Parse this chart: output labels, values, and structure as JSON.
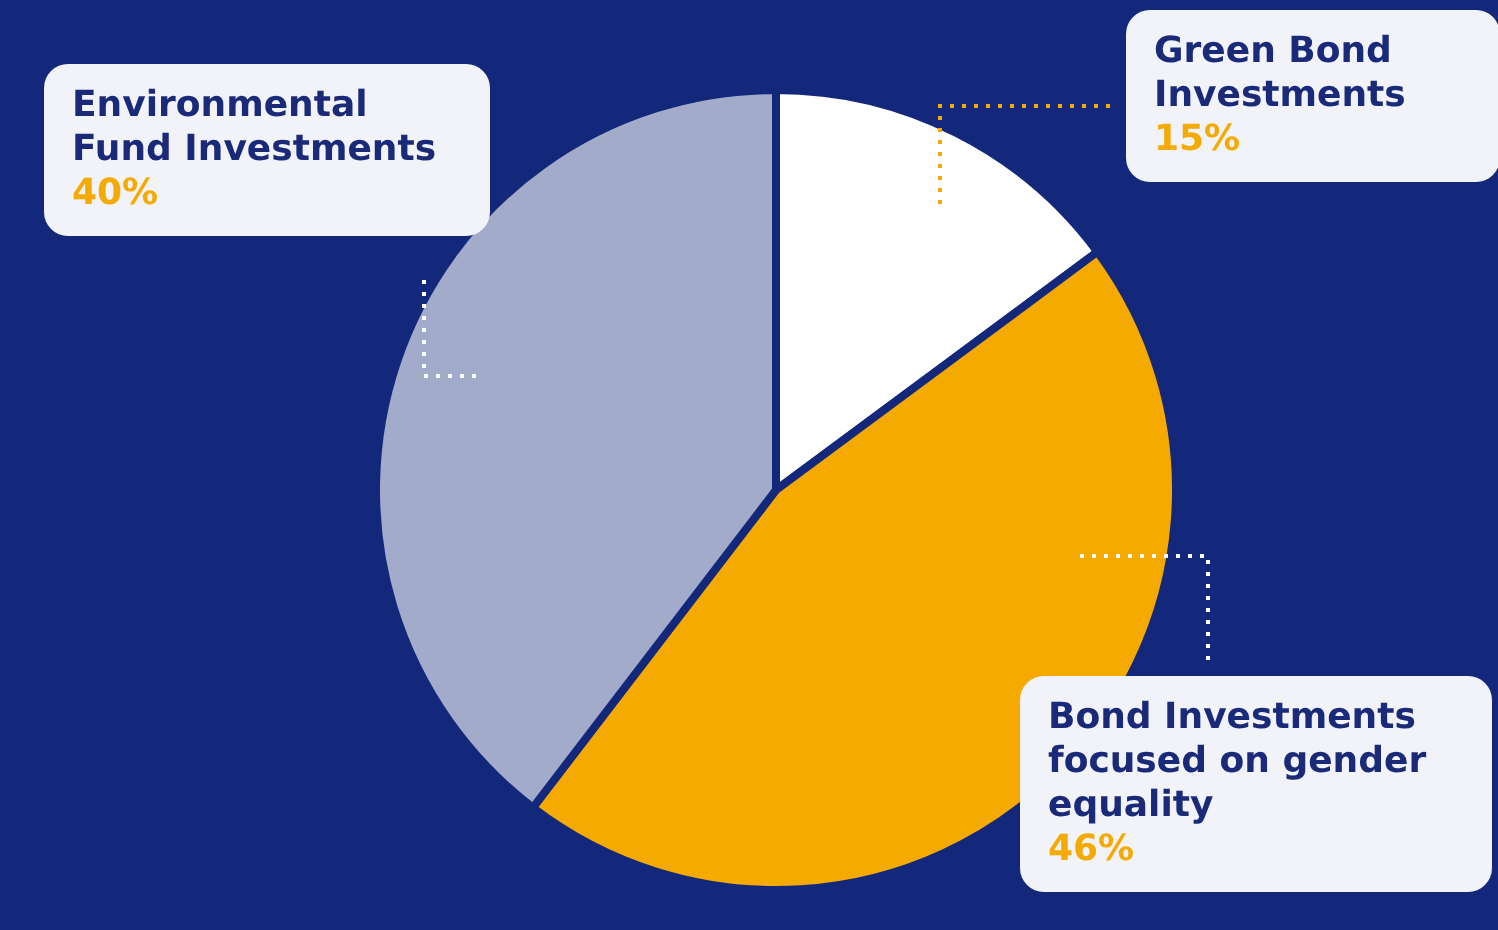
{
  "chart_data": {
    "type": "pie",
    "categories": [
      "Green Bond Investments",
      "Bond Investments focused on gender equality",
      "Environmental Fund Investments"
    ],
    "values": [
      15,
      46,
      40
    ],
    "colors": [
      "#ffffff",
      "#f4aa00",
      "#a3abca"
    ],
    "value_labels": [
      "15%",
      "46%",
      "40%"
    ]
  }
}
